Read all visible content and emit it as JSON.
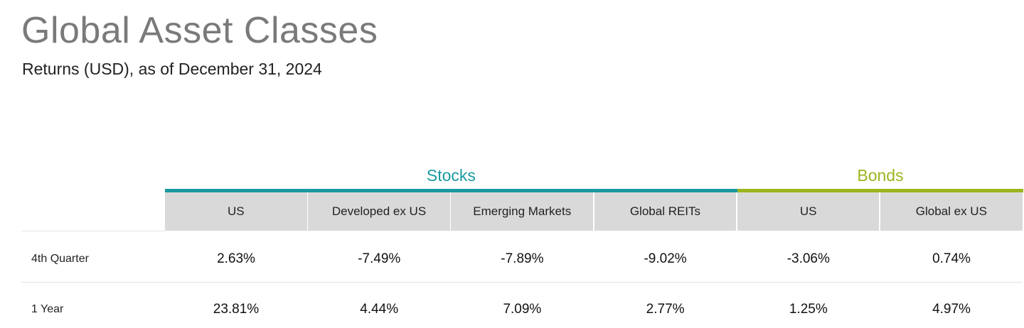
{
  "chart_data": {
    "type": "table",
    "title": "Global Asset Classes",
    "subtitle": "Returns (USD), as of December 31, 2024",
    "groups": [
      {
        "name": "Stocks",
        "color": "#1a9aa0",
        "columns": [
          "US",
          "Developed ex US",
          "Emerging Markets",
          "Global REITs"
        ]
      },
      {
        "name": "Bonds",
        "color": "#9bb51f",
        "columns": [
          "US",
          "Global ex US"
        ]
      }
    ],
    "columns": [
      "US",
      "Developed ex US",
      "Emerging Markets",
      "Global REITs",
      "US",
      "Global ex US"
    ],
    "rows": [
      {
        "label": "4th Quarter",
        "values": [
          "2.63%",
          "-7.49%",
          "-7.89%",
          "-9.02%",
          "-3.06%",
          "0.74%"
        ]
      },
      {
        "label": "1 Year",
        "values": [
          "23.81%",
          "4.44%",
          "7.09%",
          "2.77%",
          "1.25%",
          "4.97%"
        ]
      }
    ]
  }
}
